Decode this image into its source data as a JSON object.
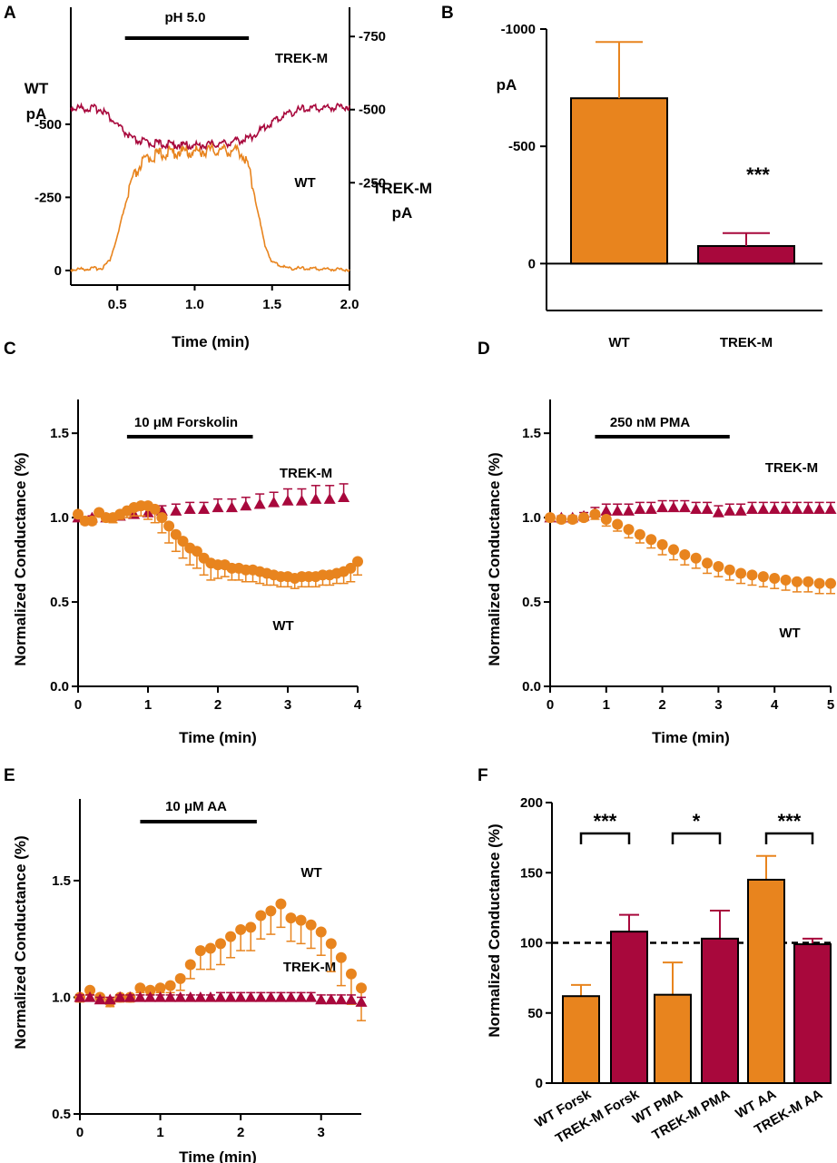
{
  "colors": {
    "wt": "#e8841e",
    "trek": "#a8083c",
    "axis": "#000000"
  },
  "chart_data": [
    {
      "panel": "A",
      "type": "line",
      "xlabel": "Time (min)",
      "xlim": [
        0.2,
        2.0
      ],
      "xticks": [
        "0.5",
        "1.0",
        "1.5",
        "2.0"
      ],
      "left_axis": {
        "label": [
          "WT",
          "pA"
        ],
        "ylim": [
          50,
          -900
        ],
        "ticks": [
          "0",
          "-250",
          "-500"
        ]
      },
      "right_axis": {
        "label": [
          "TREK-M",
          "pA"
        ],
        "ylim": [
          100,
          -850
        ],
        "ticks": [
          "-250",
          "-500",
          "-750"
        ]
      },
      "bar": {
        "label": "pH 5.0",
        "x": [
          0.55,
          1.35
        ]
      },
      "series": [
        {
          "name": "WT",
          "axis": "left",
          "x": [
            0.2,
            0.4,
            0.45,
            0.5,
            0.55,
            0.6,
            0.65,
            0.7,
            0.8,
            0.9,
            1.0,
            1.1,
            1.2,
            1.3,
            1.35,
            1.4,
            1.45,
            1.5,
            1.6,
            2.0
          ],
          "y": [
            0,
            -5,
            -30,
            -110,
            -220,
            -300,
            -350,
            -375,
            -390,
            -395,
            -395,
            -400,
            -400,
            -395,
            -340,
            -220,
            -90,
            -25,
            -5,
            0
          ]
        },
        {
          "name": "TREK-M",
          "axis": "right",
          "x": [
            0.2,
            0.4,
            0.5,
            0.6,
            0.7,
            0.8,
            1.0,
            1.2,
            1.35,
            1.5,
            1.6,
            1.7,
            2.0
          ],
          "y": [
            -500,
            -495,
            -440,
            -390,
            -380,
            -375,
            -370,
            -378,
            -395,
            -450,
            -480,
            -495,
            -505
          ]
        }
      ]
    },
    {
      "panel": "B",
      "type": "bar",
      "ylabel": "pA",
      "ylim": [
        200,
        -1000
      ],
      "yticks": [
        "-1000",
        "-500",
        "0"
      ],
      "categories": [
        "WT",
        "TREK-M"
      ],
      "values": [
        -705,
        -75
      ],
      "errors": [
        240,
        55
      ],
      "annotation": "***"
    },
    {
      "panel": "C",
      "type": "line",
      "xlabel": "Time (min)",
      "ylabel": "Normalized Conductance (%)",
      "xlim": [
        0,
        4
      ],
      "ylim": [
        0,
        1.7
      ],
      "xticks": [
        "0",
        "1",
        "2",
        "3",
        "4"
      ],
      "yticks": [
        "0.0",
        "0.5",
        "1.0",
        "1.5"
      ],
      "bar": {
        "label": "10 μM Forskolin",
        "x": [
          0.7,
          2.5
        ]
      },
      "series": [
        {
          "name": "WT",
          "x": [
            0,
            0.1,
            0.2,
            0.3,
            0.4,
            0.5,
            0.6,
            0.7,
            0.8,
            0.9,
            1.0,
            1.1,
            1.2,
            1.3,
            1.4,
            1.5,
            1.6,
            1.7,
            1.8,
            1.9,
            2.0,
            2.1,
            2.2,
            2.3,
            2.4,
            2.5,
            2.6,
            2.7,
            2.8,
            2.9,
            3.0,
            3.1,
            3.2,
            3.3,
            3.4,
            3.5,
            3.6,
            3.7,
            3.8,
            3.9,
            4.0
          ],
          "y": [
            1.02,
            0.98,
            0.98,
            1.03,
            1.0,
            1.0,
            1.02,
            1.04,
            1.06,
            1.07,
            1.07,
            1.05,
            1.0,
            0.95,
            0.9,
            0.86,
            0.82,
            0.8,
            0.76,
            0.73,
            0.72,
            0.72,
            0.7,
            0.7,
            0.69,
            0.69,
            0.68,
            0.67,
            0.66,
            0.65,
            0.65,
            0.64,
            0.65,
            0.65,
            0.65,
            0.66,
            0.66,
            0.67,
            0.68,
            0.7,
            0.74
          ],
          "error": [
            0.02,
            0.02,
            0.02,
            0.02,
            0.02,
            0.03,
            0.03,
            0.04,
            0.05,
            0.06,
            0.08,
            0.08,
            0.09,
            0.1,
            0.1,
            0.1,
            0.1,
            0.1,
            0.1,
            0.1,
            0.08,
            0.07,
            0.07,
            0.07,
            0.07,
            0.07,
            0.07,
            0.07,
            0.06,
            0.06,
            0.06,
            0.06,
            0.06,
            0.06,
            0.06,
            0.06,
            0.06,
            0.06,
            0.07,
            0.08,
            0.08
          ]
        },
        {
          "name": "TREK-M",
          "x": [
            0,
            0.2,
            0.4,
            0.6,
            0.8,
            1.0,
            1.2,
            1.4,
            1.6,
            1.8,
            2.0,
            2.2,
            2.4,
            2.6,
            2.8,
            3.0,
            3.2,
            3.4,
            3.6,
            3.8
          ],
          "y": [
            1.0,
            1.0,
            1.0,
            1.01,
            1.02,
            1.03,
            1.04,
            1.04,
            1.05,
            1.05,
            1.06,
            1.06,
            1.07,
            1.08,
            1.09,
            1.1,
            1.1,
            1.11,
            1.11,
            1.12
          ],
          "error": [
            0.01,
            0.01,
            0.01,
            0.02,
            0.02,
            0.03,
            0.03,
            0.04,
            0.04,
            0.04,
            0.05,
            0.05,
            0.05,
            0.06,
            0.06,
            0.07,
            0.07,
            0.08,
            0.08,
            0.08
          ]
        }
      ],
      "labels": [
        "TREK-M",
        "WT"
      ]
    },
    {
      "panel": "D",
      "type": "line",
      "xlabel": "Time (min)",
      "ylabel": "Normalized Conductance (%)",
      "xlim": [
        0,
        5
      ],
      "ylim": [
        0,
        1.7
      ],
      "xticks": [
        "0",
        "1",
        "2",
        "3",
        "4",
        "5"
      ],
      "yticks": [
        "0.0",
        "0.5",
        "1.0",
        "1.5"
      ],
      "bar": {
        "label": "250 nM PMA",
        "x": [
          0.8,
          3.2
        ]
      },
      "series": [
        {
          "name": "WT",
          "x": [
            0,
            0.2,
            0.4,
            0.6,
            0.8,
            1.0,
            1.2,
            1.4,
            1.6,
            1.8,
            2.0,
            2.2,
            2.4,
            2.6,
            2.8,
            3.0,
            3.2,
            3.4,
            3.6,
            3.8,
            4.0,
            4.2,
            4.4,
            4.6,
            4.8,
            5.0
          ],
          "y": [
            1.0,
            0.99,
            0.99,
            1.0,
            1.02,
            0.99,
            0.96,
            0.93,
            0.9,
            0.87,
            0.84,
            0.81,
            0.78,
            0.76,
            0.73,
            0.71,
            0.69,
            0.67,
            0.66,
            0.65,
            0.64,
            0.63,
            0.62,
            0.62,
            0.61,
            0.61
          ],
          "error": [
            0.02,
            0.02,
            0.02,
            0.02,
            0.03,
            0.04,
            0.04,
            0.05,
            0.05,
            0.05,
            0.06,
            0.06,
            0.06,
            0.06,
            0.06,
            0.06,
            0.06,
            0.06,
            0.06,
            0.06,
            0.06,
            0.06,
            0.06,
            0.06,
            0.06,
            0.06
          ]
        },
        {
          "name": "TREK-M",
          "x": [
            0,
            0.2,
            0.4,
            0.6,
            0.8,
            1.0,
            1.2,
            1.4,
            1.6,
            1.8,
            2.0,
            2.2,
            2.4,
            2.6,
            2.8,
            3.0,
            3.2,
            3.4,
            3.6,
            3.8,
            4.0,
            4.2,
            4.4,
            4.6,
            4.8,
            5.0
          ],
          "y": [
            1.0,
            1.0,
            1.0,
            1.01,
            1.03,
            1.04,
            1.04,
            1.04,
            1.05,
            1.05,
            1.06,
            1.06,
            1.06,
            1.05,
            1.05,
            1.03,
            1.04,
            1.04,
            1.05,
            1.05,
            1.05,
            1.05,
            1.05,
            1.05,
            1.05,
            1.05
          ],
          "error": [
            0.01,
            0.01,
            0.01,
            0.02,
            0.03,
            0.04,
            0.04,
            0.04,
            0.04,
            0.04,
            0.04,
            0.04,
            0.04,
            0.04,
            0.04,
            0.04,
            0.04,
            0.04,
            0.04,
            0.04,
            0.04,
            0.04,
            0.04,
            0.04,
            0.04,
            0.04
          ]
        }
      ],
      "labels": [
        "TREK-M",
        "WT"
      ]
    },
    {
      "panel": "E",
      "type": "line",
      "xlabel": "Time (min)",
      "ylabel": "Normalized Conductance (%)",
      "xlim": [
        0,
        3.5
      ],
      "ylim": [
        0.5,
        1.85
      ],
      "xticks": [
        "0",
        "1",
        "2",
        "3"
      ],
      "yticks": [
        "0.5",
        "1.0",
        "1.5"
      ],
      "bar": {
        "label": "10 μM AA",
        "x": [
          0.75,
          2.2
        ]
      },
      "series": [
        {
          "name": "WT",
          "x": [
            0,
            0.125,
            0.25,
            0.375,
            0.5,
            0.625,
            0.75,
            0.875,
            1.0,
            1.125,
            1.25,
            1.375,
            1.5,
            1.625,
            1.75,
            1.875,
            2.0,
            2.125,
            2.25,
            2.375,
            2.5,
            2.625,
            2.75,
            2.875,
            3.0,
            3.125,
            3.25,
            3.375,
            3.5
          ],
          "y": [
            1.0,
            1.03,
            1.0,
            0.98,
            1.0,
            1.0,
            1.04,
            1.03,
            1.04,
            1.05,
            1.08,
            1.14,
            1.2,
            1.21,
            1.23,
            1.26,
            1.29,
            1.3,
            1.35,
            1.37,
            1.4,
            1.34,
            1.33,
            1.31,
            1.28,
            1.23,
            1.17,
            1.1,
            1.04
          ],
          "error": [
            0.02,
            0.02,
            0.02,
            0.02,
            0.02,
            0.02,
            0.02,
            0.02,
            0.02,
            0.03,
            0.05,
            0.06,
            0.08,
            0.09,
            0.09,
            0.09,
            0.09,
            0.1,
            0.1,
            0.1,
            0.1,
            0.1,
            0.1,
            0.1,
            0.1,
            0.12,
            0.12,
            0.13,
            0.14
          ]
        },
        {
          "name": "TREK-M",
          "x": [
            0,
            0.125,
            0.25,
            0.375,
            0.5,
            0.625,
            0.75,
            0.875,
            1.0,
            1.125,
            1.25,
            1.375,
            1.5,
            1.625,
            1.75,
            1.875,
            2.0,
            2.125,
            2.25,
            2.375,
            2.5,
            2.625,
            2.75,
            2.875,
            3.0,
            3.125,
            3.25,
            3.375,
            3.5
          ],
          "y": [
            1.0,
            1.0,
            0.99,
            0.99,
            1.0,
            1.0,
            1.0,
            1.0,
            1.0,
            1.0,
            1.0,
            1.0,
            1.0,
            1.0,
            1.0,
            1.0,
            1.0,
            1.0,
            1.0,
            1.0,
            1.0,
            1.0,
            1.0,
            1.0,
            0.99,
            0.99,
            0.99,
            0.99,
            0.98
          ],
          "error": [
            0.01,
            0.01,
            0.01,
            0.01,
            0.01,
            0.01,
            0.01,
            0.01,
            0.01,
            0.01,
            0.01,
            0.01,
            0.01,
            0.01,
            0.02,
            0.02,
            0.02,
            0.02,
            0.02,
            0.02,
            0.02,
            0.02,
            0.02,
            0.02,
            0.02,
            0.02,
            0.02,
            0.02,
            0.02
          ]
        }
      ],
      "labels": [
        "WT",
        "TREK-M"
      ]
    },
    {
      "panel": "F",
      "type": "bar",
      "ylabel": "Normalized Conductance (%)",
      "ylim": [
        0,
        200
      ],
      "yticks": [
        "0",
        "50",
        "100",
        "150",
        "200"
      ],
      "reference_line": 100,
      "categories": [
        "WT Forsk",
        "TREK-M Forsk",
        "WT PMA",
        "TREK-M PMA",
        "WT AA",
        "TREK-M AA"
      ],
      "values": [
        62,
        108,
        63,
        103,
        145,
        99
      ],
      "errors": [
        8,
        12,
        23,
        20,
        17,
        4
      ],
      "significance": [
        "***",
        "*",
        "***"
      ]
    }
  ],
  "panels": {
    "A": {
      "letter": "A",
      "bar_label": "pH 5.0",
      "xlabel": "Time (min)",
      "left_label_1": "WT",
      "left_label_2": "pA",
      "right_label_1": "TREK-M",
      "right_label_2": "pA",
      "trace_label_trek": "TREK-M",
      "trace_label_wt": "WT"
    },
    "B": {
      "letter": "B",
      "ylabel": "pA",
      "stars": "***"
    },
    "C": {
      "letter": "C",
      "bar_label": "10 μM Forskolin",
      "xlabel": "Time (min)",
      "ylabel": "Normalized Conductance (%)",
      "trek_label": "TREK-M",
      "wt_label": "WT"
    },
    "D": {
      "letter": "D",
      "bar_label": "250 nM PMA",
      "xlabel": "Time (min)",
      "ylabel": "Normalized Conductance (%)",
      "trek_label": "TREK-M",
      "wt_label": "WT"
    },
    "E": {
      "letter": "E",
      "bar_label": "10 μM AA",
      "xlabel": "Time (min)",
      "ylabel": "Normalized Conductance (%)",
      "trek_label": "TREK-M",
      "wt_label": "WT"
    },
    "F": {
      "letter": "F",
      "ylabel": "Normalized Conductance (%)"
    }
  }
}
